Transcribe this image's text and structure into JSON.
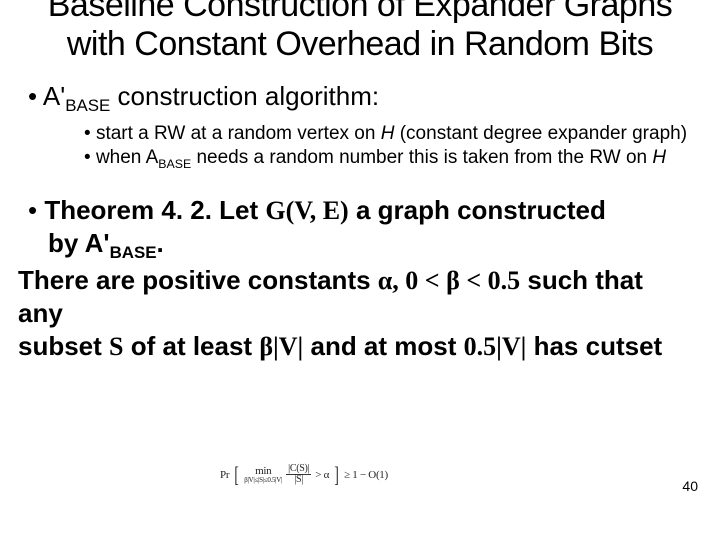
{
  "title": "Baseline Construction of Expander Graphs with Constant Overhead in Random Bits",
  "bullet1_pre": "A'",
  "bullet1_sub": "BASE",
  "bullet1_post": " construction algorithm:",
  "sub1_pre": "start a RW at a random vertex on ",
  "sub1_h": "H",
  "sub1_post": " (constant degree expander graph)",
  "sub2_pre": "when A",
  "sub2_sub": "BASE",
  "sub2_mid": " needs a random number this is taken from the RW on ",
  "sub2_h": "H",
  "thm_label": "Theorem 4. 2.",
  "thm_l1_let": " Let ",
  "thm_l1_gve": "G(V, E)",
  "thm_l1_rest": " a graph constructed",
  "thm_l2_pre": "by A'",
  "thm_l2_sub": "BASE",
  "thm_l2_post": ".",
  "thm_l3_pre": "There are positive constants ",
  "thm_l3_greek": "α, 0 < β < 0.5",
  "thm_l3_post": " such that any",
  "thm_l4_pre": "subset ",
  "thm_l4_s": "S",
  "thm_l4_mid1": " of at least ",
  "thm_l4_bv": "β|V|",
  "thm_l4_mid2": " and at most ",
  "thm_l4_hv": "0.5|V|",
  "thm_l4_end": " has cutset",
  "page_num": "40",
  "formula": {
    "pr": "Pr",
    "min": "min",
    "mincond": "β|V|≤|S|≤0.5|V|",
    "num": "|C(S)|",
    "den": "|S|",
    "tail": "> α",
    "rhs": "≥ 1 − O(1)"
  },
  "colors": {
    "background": "#ffffff",
    "text": "#000000"
  },
  "fonts": {
    "body": "Arial",
    "math": "Times New Roman",
    "title_size_pt": 26,
    "body_size_pt": 20,
    "sub_size_pt": 14
  }
}
